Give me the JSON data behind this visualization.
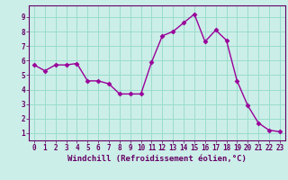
{
  "x": [
    0,
    1,
    2,
    3,
    4,
    5,
    6,
    7,
    8,
    9,
    10,
    11,
    12,
    13,
    14,
    15,
    16,
    17,
    18,
    19,
    20,
    21,
    22,
    23
  ],
  "y": [
    5.7,
    5.3,
    5.7,
    5.7,
    5.8,
    4.6,
    4.6,
    4.4,
    3.7,
    3.7,
    3.7,
    5.9,
    7.7,
    8.0,
    8.6,
    9.2,
    7.3,
    8.1,
    7.4,
    4.6,
    2.9,
    1.7,
    1.2,
    1.1
  ],
  "line_color": "#990099",
  "marker": "D",
  "markersize": 2.5,
  "linewidth": 1.0,
  "bg_color": "#cceee8",
  "grid_color": "#99ddcc",
  "xlabel": "Windchill (Refroidissement éolien,°C)",
  "xlabel_fontsize": 6.5,
  "ylabel_ticks": [
    1,
    2,
    3,
    4,
    5,
    6,
    7,
    8,
    9
  ],
  "xtick_labels": [
    "0",
    "1",
    "2",
    "3",
    "4",
    "5",
    "6",
    "7",
    "8",
    "9",
    "10",
    "11",
    "12",
    "13",
    "14",
    "15",
    "16",
    "17",
    "18",
    "19",
    "20",
    "21",
    "22",
    "23"
  ],
  "xlim": [
    -0.5,
    23.5
  ],
  "ylim": [
    0.5,
    9.8
  ],
  "tick_fontsize": 5.5,
  "tick_color": "#660066",
  "xlabel_color": "#660066",
  "spine_color": "#660066"
}
